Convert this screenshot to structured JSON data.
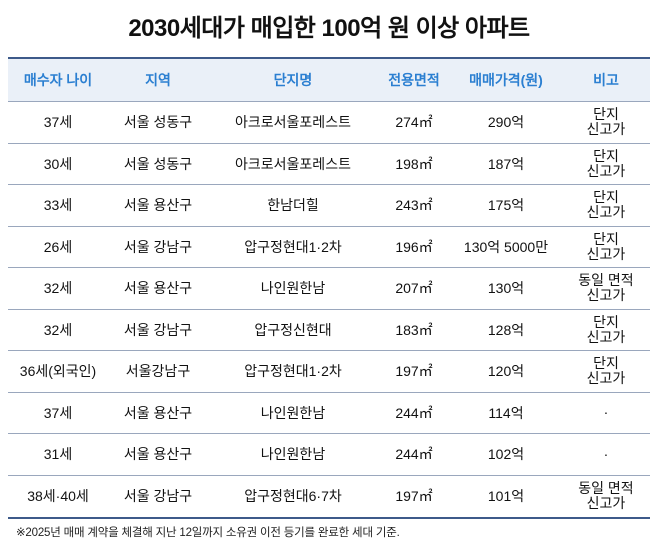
{
  "title": "2030세대가 매입한 100억 원 이상 아파트",
  "table": {
    "headers": [
      "매수자 나이",
      "지역",
      "단지명",
      "전용면적",
      "매매가격(원)",
      "비고"
    ],
    "rows": [
      {
        "age": "37세",
        "region": "서울 성동구",
        "complex": "아크로서울포레스트",
        "area": "274㎡",
        "price": "290억",
        "note": "단지\n신고가"
      },
      {
        "age": "30세",
        "region": "서울 성동구",
        "complex": "아크로서울포레스트",
        "area": "198㎡",
        "price": "187억",
        "note": "단지\n신고가"
      },
      {
        "age": "33세",
        "region": "서울 용산구",
        "complex": "한남더힐",
        "area": "243㎡",
        "price": "175억",
        "note": "단지\n신고가"
      },
      {
        "age": "26세",
        "region": "서울 강남구",
        "complex": "압구정현대1·2차",
        "area": "196㎡",
        "price": "130억 5000만",
        "note": "단지\n신고가"
      },
      {
        "age": "32세",
        "region": "서울 용산구",
        "complex": "나인원한남",
        "area": "207㎡",
        "price": "130억",
        "note": "동일 면적\n신고가"
      },
      {
        "age": "32세",
        "region": "서울 강남구",
        "complex": "압구정신현대",
        "area": "183㎡",
        "price": "128억",
        "note": "단지\n신고가"
      },
      {
        "age": "36세(외국인)",
        "region": "서울강남구",
        "complex": "압구정현대1·2차",
        "area": "197㎡",
        "price": "120억",
        "note": "단지\n신고가"
      },
      {
        "age": "37세",
        "region": "서울 용산구",
        "complex": "나인원한남",
        "area": "244㎡",
        "price": "114억",
        "note": "·"
      },
      {
        "age": "31세",
        "region": "서울 용산구",
        "complex": "나인원한남",
        "area": "244㎡",
        "price": "102억",
        "note": "·"
      },
      {
        "age": "38세·40세",
        "region": "서울 강남구",
        "complex": "압구정현대6·7차",
        "area": "197㎡",
        "price": "101억",
        "note": "동일 면적\n신고가"
      }
    ]
  },
  "footnote": "※2025년 매매 계약을 체결해 지난 12일까지 소유권 이전 등기를 완료한 세대 기준."
}
